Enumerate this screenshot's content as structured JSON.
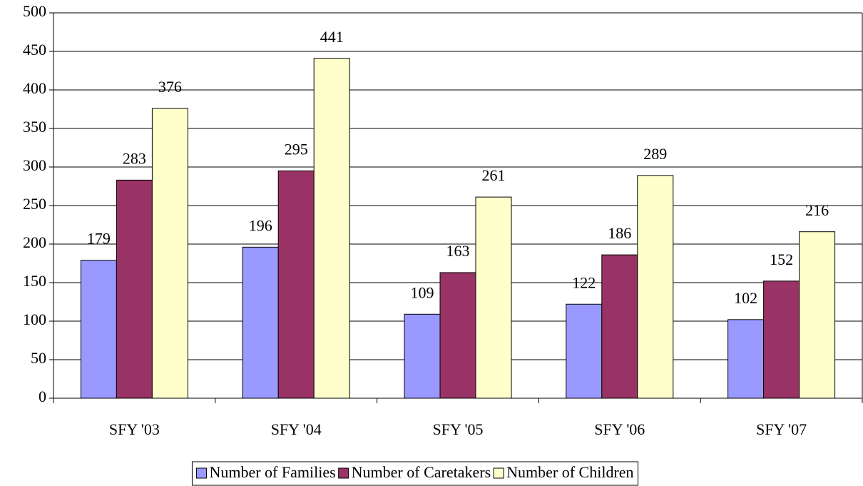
{
  "chart_data": {
    "type": "bar",
    "categories": [
      "SFY '03",
      "SFY '04",
      "SFY '05",
      "SFY '06",
      "SFY '07"
    ],
    "series": [
      {
        "name": "Number of Families",
        "color": "#9999ff",
        "values": [
          179,
          196,
          109,
          122,
          102
        ]
      },
      {
        "name": "Number of Caretakers",
        "color": "#993366",
        "values": [
          283,
          295,
          163,
          186,
          152
        ]
      },
      {
        "name": "Number of Children",
        "color": "#ffffcc",
        "values": [
          376,
          441,
          261,
          289,
          216
        ]
      }
    ],
    "ylim": [
      0,
      500
    ],
    "yticks": [
      0,
      50,
      100,
      150,
      200,
      250,
      300,
      350,
      400,
      450,
      500
    ],
    "grid": true,
    "legend": "bottom"
  }
}
